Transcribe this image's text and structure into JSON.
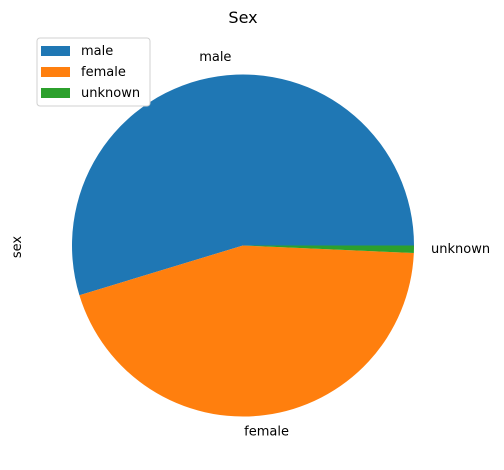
{
  "chart_data": {
    "type": "pie",
    "title": "Sex",
    "ylabel": "sex",
    "categories": [
      "male",
      "female",
      "unknown"
    ],
    "values": [
      54.7,
      44.6,
      0.7
    ],
    "colors": [
      "#1f77b4",
      "#ff7f0e",
      "#2ca02c"
    ],
    "legend": {
      "position": "top-left",
      "entries": [
        "male",
        "female",
        "unknown"
      ]
    },
    "start_angle_deg": 0,
    "direction": "counterclockwise"
  }
}
